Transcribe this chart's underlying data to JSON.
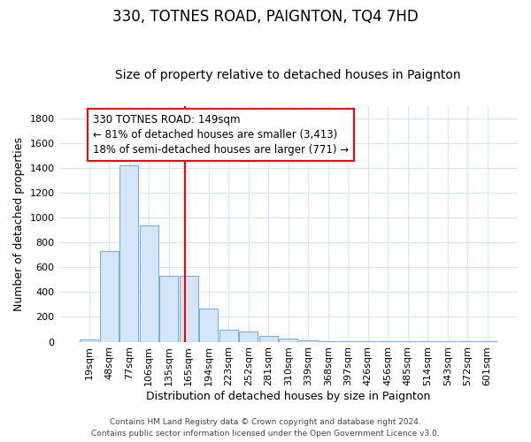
{
  "title": "330, TOTNES ROAD, PAIGNTON, TQ4 7HD",
  "subtitle": "Size of property relative to detached houses in Paignton",
  "xlabel": "Distribution of detached houses by size in Paignton",
  "ylabel": "Number of detached properties",
  "bar_color": "#d4e6f8",
  "bar_edge_color": "#7ab0d8",
  "categories": [
    "19sqm",
    "48sqm",
    "77sqm",
    "106sqm",
    "135sqm",
    "165sqm",
    "194sqm",
    "223sqm",
    "252sqm",
    "281sqm",
    "310sqm",
    "339sqm",
    "368sqm",
    "397sqm",
    "426sqm",
    "456sqm",
    "485sqm",
    "514sqm",
    "543sqm",
    "572sqm",
    "601sqm"
  ],
  "values": [
    20,
    730,
    1420,
    935,
    530,
    530,
    270,
    100,
    85,
    50,
    25,
    10,
    5,
    3,
    2,
    2,
    2,
    1,
    1,
    1,
    1
  ],
  "ylim": [
    0,
    1900
  ],
  "yticks": [
    0,
    200,
    400,
    600,
    800,
    1000,
    1200,
    1400,
    1600,
    1800
  ],
  "red_line_x": 4.8,
  "annotation_line1": "330 TOTNES ROAD: 149sqm",
  "annotation_line2": "← 81% of detached houses are smaller (3,413)",
  "annotation_line3": "18% of semi-detached houses are larger (771) →",
  "footer_line1": "Contains HM Land Registry data © Crown copyright and database right 2024.",
  "footer_line2": "Contains public sector information licensed under the Open Government Licence v3.0.",
  "background_color": "#ffffff",
  "grid_color": "#d8e4f0",
  "title_fontsize": 12,
  "subtitle_fontsize": 10,
  "axis_label_fontsize": 9,
  "tick_fontsize": 8,
  "annotation_fontsize": 8.5,
  "footer_fontsize": 6.5
}
